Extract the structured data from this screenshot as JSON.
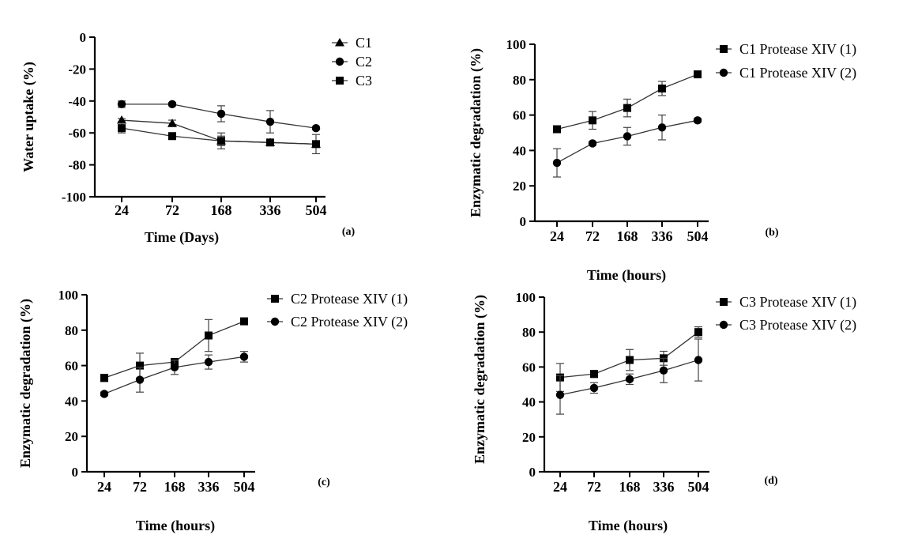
{
  "chart_data": [
    {
      "panel_label": "(a)",
      "type": "line",
      "xlabel": "Time (Days)",
      "ylabel": "Water uptake (%)",
      "categories": [
        "24",
        "72",
        "168",
        "336",
        "504"
      ],
      "yticks": [
        "0",
        "-20",
        "-40",
        "-60",
        "-80",
        "-100"
      ],
      "ylim": [
        -100,
        0
      ],
      "legend_position": "top-right",
      "series": [
        {
          "name": "C1",
          "marker": "triangle",
          "values": [
            -52,
            -54,
            -65,
            -66,
            -67
          ],
          "errors": [
            1,
            2,
            3,
            2,
            2
          ]
        },
        {
          "name": "C2",
          "marker": "circle",
          "values": [
            -42,
            -42,
            -48,
            -53,
            -57
          ],
          "errors": [
            2,
            1,
            5,
            7,
            1
          ]
        },
        {
          "name": "C3",
          "marker": "square",
          "values": [
            -57,
            -62,
            -65,
            -66,
            -67
          ],
          "errors": [
            3,
            2,
            5,
            1,
            6
          ]
        }
      ]
    },
    {
      "panel_label": "(b)",
      "type": "line",
      "xlabel": "Time (hours)",
      "ylabel": "Enzymatic degradation (%)",
      "categories": [
        "24",
        "72",
        "168",
        "336",
        "504"
      ],
      "yticks": [
        "100",
        "80",
        "60",
        "40",
        "20",
        "0"
      ],
      "ylim": [
        0,
        100
      ],
      "legend_position": "top-right",
      "series": [
        {
          "name": "C1 Protease XIV (1)",
          "marker": "square",
          "values": [
            52,
            57,
            64,
            75,
            83
          ],
          "errors": [
            1,
            5,
            5,
            4,
            1
          ]
        },
        {
          "name": "C1 Protease XIV (2)",
          "marker": "circle",
          "values": [
            33,
            44,
            48,
            53,
            57
          ],
          "errors": [
            8,
            1,
            5,
            7,
            1
          ]
        }
      ]
    },
    {
      "panel_label": "(c)",
      "type": "line",
      "xlabel": "Time (hours)",
      "ylabel": "Enzymatic degradation (%)",
      "categories": [
        "24",
        "72",
        "168",
        "336",
        "504"
      ],
      "yticks": [
        "100",
        "80",
        "60",
        "40",
        "20",
        "0"
      ],
      "ylim": [
        0,
        100
      ],
      "legend_position": "top-right",
      "series": [
        {
          "name": "C2 Protease XIV (1)",
          "marker": "square",
          "values": [
            53,
            60,
            62,
            77,
            85
          ],
          "errors": [
            2,
            7,
            2,
            9,
            1
          ]
        },
        {
          "name": "C2 Protease XIV (2)",
          "marker": "circle",
          "values": [
            44,
            52,
            59,
            62,
            65
          ],
          "errors": [
            1,
            7,
            4,
            4,
            3
          ]
        }
      ]
    },
    {
      "panel_label": "(d)",
      "type": "line",
      "xlabel": "Time (hours)",
      "ylabel": "Enzymatic degradation (%)",
      "categories": [
        "24",
        "72",
        "168",
        "336",
        "504"
      ],
      "yticks": [
        "100",
        "80",
        "60",
        "40",
        "20",
        "0"
      ],
      "ylim": [
        0,
        100
      ],
      "legend_position": "top-right",
      "series": [
        {
          "name": "C3 Protease XIV (1)",
          "marker": "square",
          "values": [
            54,
            56,
            64,
            65,
            80
          ],
          "errors": [
            8,
            2,
            6,
            4,
            3
          ]
        },
        {
          "name": "C3 Protease XIV (2)",
          "marker": "circle",
          "values": [
            44,
            48,
            53,
            58,
            64
          ],
          "errors": [
            11,
            3,
            3,
            7,
            12
          ]
        }
      ]
    }
  ]
}
